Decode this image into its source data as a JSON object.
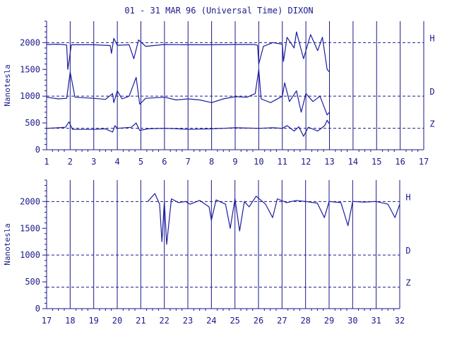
{
  "title": "01 - 31 MAR 96 (Universal Time) DIXON",
  "colors": {
    "ink": "#1a1a8c",
    "trace": "#1c1ca0"
  },
  "chart_data": [
    {
      "type": "line",
      "panel": "top",
      "xlim": [
        1,
        17
      ],
      "xticks": [
        1,
        2,
        3,
        4,
        5,
        6,
        7,
        8,
        9,
        10,
        11,
        12,
        13,
        14,
        15,
        16,
        17
      ],
      "ylim": [
        0,
        2400
      ],
      "yticks": [
        0,
        500,
        1000,
        1500,
        2000
      ],
      "ylabel": "Nanotesla",
      "baselines": [
        {
          "name": "H",
          "value": 2000
        },
        {
          "name": "D",
          "value": 1000
        },
        {
          "name": "Z",
          "value": 400
        }
      ],
      "data_end_day": 13,
      "series": [
        {
          "name": "H",
          "points": [
            [
              1,
              1965
            ],
            [
              1.5,
              1970
            ],
            [
              1.85,
              1955
            ],
            [
              1.9,
              1500
            ],
            [
              2.05,
              1960
            ],
            [
              3,
              1960
            ],
            [
              3.7,
              1945
            ],
            [
              3.75,
              1800
            ],
            [
              3.85,
              2080
            ],
            [
              4,
              1950
            ],
            [
              4.5,
              1960
            ],
            [
              4.7,
              1700
            ],
            [
              4.9,
              2050
            ],
            [
              5.2,
              1930
            ],
            [
              6,
              1965
            ],
            [
              6.8,
              1960
            ],
            [
              7.5,
              1960
            ],
            [
              8,
              1960
            ],
            [
              9,
              1965
            ],
            [
              9.8,
              1965
            ],
            [
              9.95,
              1950
            ],
            [
              10.0,
              1600
            ],
            [
              10.2,
              1930
            ],
            [
              10.6,
              2000
            ],
            [
              11,
              1970
            ],
            [
              11.05,
              1650
            ],
            [
              11.2,
              2100
            ],
            [
              11.5,
              1900
            ],
            [
              11.6,
              2200
            ],
            [
              11.9,
              1700
            ],
            [
              12.2,
              2150
            ],
            [
              12.5,
              1850
            ],
            [
              12.7,
              2100
            ],
            [
              12.9,
              1500
            ],
            [
              13.0,
              1450
            ]
          ]
        },
        {
          "name": "D",
          "points": [
            [
              1,
              980
            ],
            [
              1.5,
              950
            ],
            [
              1.85,
              960
            ],
            [
              2.0,
              1450
            ],
            [
              2.2,
              980
            ],
            [
              3,
              960
            ],
            [
              3.5,
              940
            ],
            [
              3.8,
              1050
            ],
            [
              3.85,
              880
            ],
            [
              4,
              1100
            ],
            [
              4.2,
              950
            ],
            [
              4.5,
              1000
            ],
            [
              4.8,
              1350
            ],
            [
              4.95,
              850
            ],
            [
              5.2,
              960
            ],
            [
              6,
              980
            ],
            [
              6.5,
              930
            ],
            [
              7,
              950
            ],
            [
              7.5,
              930
            ],
            [
              8,
              880
            ],
            [
              8.5,
              950
            ],
            [
              9,
              990
            ],
            [
              9.5,
              980
            ],
            [
              9.85,
              1050
            ],
            [
              10.0,
              1500
            ],
            [
              10.1,
              950
            ],
            [
              10.5,
              880
            ],
            [
              11,
              1000
            ],
            [
              11.1,
              1250
            ],
            [
              11.3,
              900
            ],
            [
              11.6,
              1100
            ],
            [
              11.8,
              700
            ],
            [
              12.0,
              1050
            ],
            [
              12.3,
              900
            ],
            [
              12.6,
              1000
            ],
            [
              12.9,
              650
            ],
            [
              13.0,
              700
            ]
          ]
        },
        {
          "name": "Z",
          "points": [
            [
              1,
              400
            ],
            [
              1.5,
              410
            ],
            [
              1.8,
              420
            ],
            [
              1.95,
              520
            ],
            [
              2.1,
              380
            ],
            [
              3,
              380
            ],
            [
              3.5,
              390
            ],
            [
              3.8,
              330
            ],
            [
              3.9,
              450
            ],
            [
              4,
              400
            ],
            [
              4.6,
              420
            ],
            [
              4.8,
              500
            ],
            [
              4.95,
              360
            ],
            [
              5.3,
              390
            ],
            [
              6,
              400
            ],
            [
              6.6,
              390
            ],
            [
              7,
              380
            ],
            [
              8,
              390
            ],
            [
              8.5,
              400
            ],
            [
              9,
              410
            ],
            [
              10,
              400
            ],
            [
              10.6,
              410
            ],
            [
              11,
              400
            ],
            [
              11.2,
              450
            ],
            [
              11.5,
              350
            ],
            [
              11.7,
              430
            ],
            [
              11.9,
              250
            ],
            [
              12.1,
              420
            ],
            [
              12.5,
              350
            ],
            [
              12.8,
              450
            ],
            [
              12.9,
              550
            ],
            [
              13.0,
              480
            ]
          ]
        }
      ]
    },
    {
      "type": "line",
      "panel": "bottom",
      "xlim": [
        17,
        32
      ],
      "xticks": [
        17,
        18,
        19,
        20,
        21,
        22,
        23,
        24,
        25,
        26,
        27,
        28,
        29,
        30,
        31,
        32
      ],
      "ylim": [
        0,
        2400
      ],
      "yticks": [
        0,
        500,
        1000,
        1500,
        2000
      ],
      "ylabel": "Nanotesla",
      "baselines": [
        {
          "name": "H",
          "value": 2000
        },
        {
          "name": "D",
          "value": 1000
        },
        {
          "name": "Z",
          "value": 400
        }
      ],
      "data_start_day": 21.3,
      "series": [
        {
          "name": "H",
          "points": [
            [
              21.3,
              2000
            ],
            [
              21.6,
              2150
            ],
            [
              21.8,
              1950
            ],
            [
              21.9,
              1250
            ],
            [
              22.0,
              2000
            ],
            [
              22.1,
              1200
            ],
            [
              22.3,
              2050
            ],
            [
              22.6,
              1980
            ],
            [
              22.9,
              2000
            ],
            [
              23.1,
              1950
            ],
            [
              23.5,
              2020
            ],
            [
              23.9,
              1900
            ],
            [
              24.0,
              1650
            ],
            [
              24.2,
              2030
            ],
            [
              24.6,
              1950
            ],
            [
              24.8,
              1500
            ],
            [
              25.0,
              2050
            ],
            [
              25.2,
              1450
            ],
            [
              25.4,
              2000
            ],
            [
              25.6,
              1900
            ],
            [
              25.9,
              2100
            ],
            [
              26.3,
              1950
            ],
            [
              26.6,
              1700
            ],
            [
              26.8,
              2050
            ],
            [
              27.2,
              1980
            ],
            [
              27.6,
              2020
            ],
            [
              28.0,
              2000
            ],
            [
              28.5,
              1970
            ],
            [
              28.8,
              1700
            ],
            [
              29.0,
              2000
            ],
            [
              29.5,
              1980
            ],
            [
              29.8,
              1550
            ],
            [
              30.0,
              2000
            ],
            [
              30.5,
              1990
            ],
            [
              31.0,
              2000
            ],
            [
              31.5,
              1950
            ],
            [
              31.8,
              1700
            ],
            [
              32.0,
              1950
            ]
          ]
        }
      ]
    }
  ]
}
